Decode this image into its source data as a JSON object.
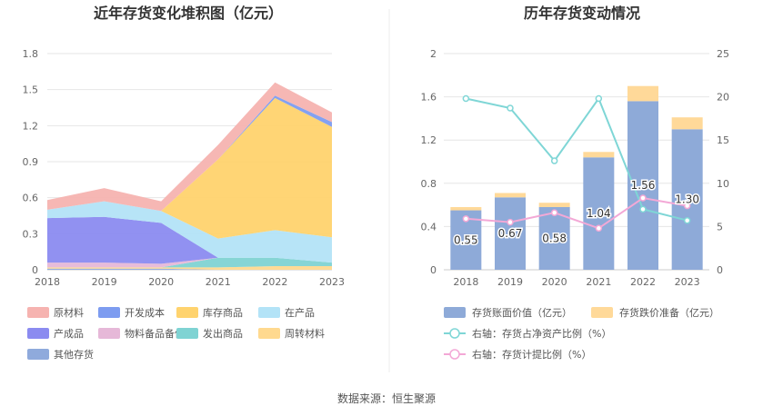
{
  "source_label": "数据来源：恒生聚源",
  "chart_data": [
    {
      "type": "area",
      "stacked": true,
      "title": "近年存货变化堆积图（亿元）",
      "categories": [
        "2018",
        "2019",
        "2020",
        "2021",
        "2022",
        "2023"
      ],
      "ylim": [
        0,
        1.8
      ],
      "yticks": [
        "0",
        "0.3",
        "0.6",
        "0.9",
        "1.2",
        "1.5",
        "1.8"
      ],
      "grid": true,
      "legend_position": "bottom",
      "series": [
        {
          "name": "其他存货",
          "color": "#8faadc",
          "values": [
            0.01,
            0.01,
            0.01,
            0.0,
            0.0,
            0.0
          ]
        },
        {
          "name": "周转材料",
          "color": "#ffd98f",
          "values": [
            0.01,
            0.01,
            0.01,
            0.02,
            0.03,
            0.03
          ]
        },
        {
          "name": "发出商品",
          "color": "#7fd3d3",
          "values": [
            0.0,
            0.0,
            0.0,
            0.08,
            0.07,
            0.03
          ]
        },
        {
          "name": "物料备品备件",
          "color": "#e6b8d8",
          "values": [
            0.04,
            0.04,
            0.03,
            0.0,
            0.0,
            0.0
          ]
        },
        {
          "name": "产成品",
          "color": "#8b8bf0",
          "values": [
            0.37,
            0.38,
            0.34,
            0.0,
            0.0,
            0.0
          ]
        },
        {
          "name": "在产品",
          "color": "#b3e3f7",
          "values": [
            0.07,
            0.13,
            0.1,
            0.16,
            0.23,
            0.21
          ]
        },
        {
          "name": "库存商品",
          "color": "#ffd36e",
          "values": [
            0.0,
            0.0,
            0.0,
            0.66,
            1.1,
            0.92
          ]
        },
        {
          "name": "开发成本",
          "color": "#7d9cf0",
          "values": [
            0.0,
            0.0,
            0.0,
            0.0,
            0.02,
            0.04
          ]
        },
        {
          "name": "原材料",
          "color": "#f6b3b0",
          "values": [
            0.08,
            0.11,
            0.08,
            0.12,
            0.11,
            0.08
          ]
        }
      ],
      "legend_order": [
        "原材料",
        "开发成本",
        "库存商品",
        "在产品",
        "产成品",
        "物料备品备件",
        "发出商品",
        "周转材料",
        "其他存货"
      ]
    },
    {
      "type": "bar",
      "title": "历年存货变动情况",
      "categories": [
        "2018",
        "2019",
        "2020",
        "2021",
        "2022",
        "2023"
      ],
      "ylim": [
        0,
        2
      ],
      "yticks": [
        "0",
        "0.4",
        "0.8",
        "1.2",
        "1.6",
        "2"
      ],
      "y2lim": [
        0,
        25
      ],
      "y2ticks": [
        "0",
        "5",
        "10",
        "15",
        "20",
        "25"
      ],
      "grid": true,
      "legend_position": "bottom",
      "series": [
        {
          "name": "存货账面价值（亿元）",
          "type": "bar",
          "axis": "left",
          "color": "#8eaad8",
          "values": [
            0.55,
            0.67,
            0.58,
            1.04,
            1.56,
            1.3
          ],
          "labels": [
            "0.55",
            "0.67",
            "0.58",
            "1.04",
            "1.56",
            "1.30"
          ]
        },
        {
          "name": "存货跌价准备（亿元）",
          "type": "bar",
          "axis": "left",
          "stacked": true,
          "color": "#ffd999",
          "values": [
            0.03,
            0.04,
            0.04,
            0.05,
            0.14,
            0.11
          ]
        },
        {
          "name": "右轴：存货占净资产比例（%）",
          "type": "line",
          "axis": "right",
          "color": "#7fd6d6",
          "values": [
            19.8,
            18.7,
            12.6,
            19.8,
            7.0,
            5.7
          ]
        },
        {
          "name": "右轴：存货计提比例（%）",
          "type": "line",
          "axis": "right",
          "color": "#f3a8d6",
          "values": [
            5.9,
            5.5,
            6.6,
            4.8,
            8.3,
            7.4
          ]
        }
      ]
    }
  ]
}
